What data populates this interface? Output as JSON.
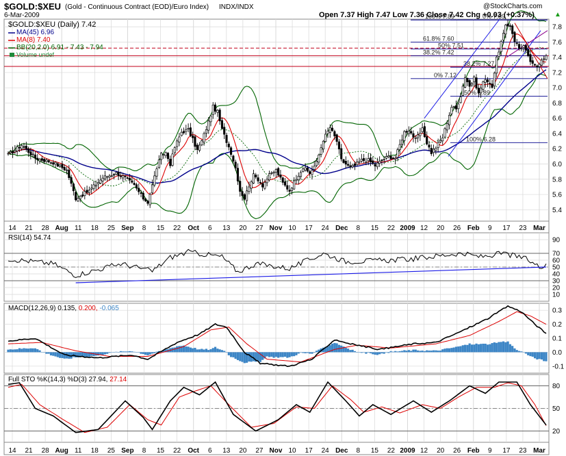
{
  "header": {
    "symbol": "$GOLD:$XEU",
    "description": "(Gold - Continuous Contract (EOD)/Euro Index)",
    "exchange": "INDX/INDX",
    "date": "6-Mar-2009",
    "copyright": "@StockCharts.com",
    "quote": "Open 7.37  High 7.47  Low 7.36  Close 7.42  Chg +0.03 (+0.37%)",
    "quote_arrow": "▲"
  },
  "legend": {
    "main": "$GOLD:$XEU (Daily) 7.42",
    "ma45": "MA(45) 6.96",
    "ma8": "MA(8) 7.40",
    "bb": "BB(20,2.0) 6.91 - 7.43 - 7.94",
    "volume": "Volume undef",
    "rsi": "RSI(14) 54.74",
    "macd_label": "MACD(12,26,9)",
    "macd_v1": "0.135,",
    "macd_v2": "0.200,",
    "macd_v3": "-0.065",
    "sto_label": "Full STO %K(14,3) %D(3)",
    "sto_v1": "27.94,",
    "sto_v2": "27.14"
  },
  "colors": {
    "ma45": "#00008b",
    "ma8": "#dd0000",
    "bb": "#006400",
    "volume": "#1f8a3a",
    "hist": "#3d86c6",
    "fib": "#00008b",
    "grid": "#d8d8d8",
    "border": "#888888",
    "resistance": "#c0001a",
    "trend_blue": "#1a1ae6",
    "trend_purple": "#8b008b",
    "macd_v3": "#3d86c6"
  },
  "x_axis": {
    "labels": [
      {
        "t": "14",
        "b": false
      },
      {
        "t": "21",
        "b": false
      },
      {
        "t": "28",
        "b": false
      },
      {
        "t": "Aug",
        "b": true
      },
      {
        "t": "11",
        "b": false
      },
      {
        "t": "18",
        "b": false
      },
      {
        "t": "25",
        "b": false
      },
      {
        "t": "Sep",
        "b": true
      },
      {
        "t": "8",
        "b": false
      },
      {
        "t": "15",
        "b": false
      },
      {
        "t": "22",
        "b": false
      },
      {
        "t": "Oct",
        "b": true
      },
      {
        "t": "6",
        "b": false
      },
      {
        "t": "13",
        "b": false
      },
      {
        "t": "20",
        "b": false
      },
      {
        "t": "27",
        "b": false
      },
      {
        "t": "Nov",
        "b": true
      },
      {
        "t": "10",
        "b": false
      },
      {
        "t": "17",
        "b": false
      },
      {
        "t": "24",
        "b": false
      },
      {
        "t": "Dec",
        "b": true
      },
      {
        "t": "8",
        "b": false
      },
      {
        "t": "15",
        "b": false
      },
      {
        "t": "22",
        "b": false
      },
      {
        "t": "2009",
        "b": true
      },
      {
        "t": "12",
        "b": false
      },
      {
        "t": "20",
        "b": false
      },
      {
        "t": "26",
        "b": false
      },
      {
        "t": "Feb",
        "b": true
      },
      {
        "t": "9",
        "b": false
      },
      {
        "t": "17",
        "b": false
      },
      {
        "t": "23",
        "b": false
      },
      {
        "t": "Mar",
        "b": true
      }
    ]
  },
  "chart_data": [
    {
      "type": "candlestick",
      "title": "$GOLD:$XEU (Daily) 7.42",
      "ylim": [
        5.25,
        7.9
      ],
      "yticks": [
        "5.4",
        "5.6",
        "5.8",
        "6.0",
        "6.2",
        "6.4",
        "6.6",
        "6.8",
        "7.0",
        "7.2",
        "7.4",
        "7.6",
        "7.8"
      ],
      "close_keypoints": [
        [
          0,
          6.12
        ],
        [
          6,
          6.25
        ],
        [
          12,
          6.08
        ],
        [
          20,
          6.02
        ],
        [
          26,
          5.92
        ],
        [
          30,
          5.55
        ],
        [
          36,
          5.65
        ],
        [
          42,
          5.82
        ],
        [
          48,
          5.88
        ],
        [
          52,
          5.82
        ],
        [
          56,
          5.72
        ],
        [
          60,
          5.55
        ],
        [
          62,
          5.5
        ],
        [
          64,
          5.72
        ],
        [
          66,
          5.95
        ],
        [
          68,
          6.12
        ],
        [
          70,
          6.15
        ],
        [
          72,
          6.0
        ],
        [
          74,
          6.22
        ],
        [
          77,
          6.42
        ],
        [
          80,
          6.45
        ],
        [
          82,
          6.32
        ],
        [
          84,
          6.18
        ],
        [
          86,
          6.3
        ],
        [
          89,
          6.55
        ],
        [
          91,
          6.75
        ],
        [
          93,
          6.68
        ],
        [
          95,
          6.45
        ],
        [
          97,
          6.3
        ],
        [
          99,
          6.15
        ],
        [
          101,
          5.95
        ],
        [
          103,
          5.65
        ],
        [
          105,
          5.55
        ],
        [
          107,
          5.72
        ],
        [
          109,
          5.85
        ],
        [
          111,
          5.8
        ],
        [
          113,
          5.72
        ],
        [
          116,
          5.85
        ],
        [
          119,
          5.92
        ],
        [
          122,
          5.75
        ],
        [
          125,
          5.65
        ],
        [
          128,
          5.82
        ],
        [
          131,
          5.95
        ],
        [
          134,
          5.88
        ],
        [
          137,
          6.02
        ],
        [
          140,
          6.32
        ],
        [
          143,
          6.48
        ],
        [
          146,
          6.3
        ],
        [
          148,
          6.05
        ],
        [
          150,
          6.0
        ],
        [
          152,
          5.95
        ],
        [
          154,
          5.98
        ],
        [
          157,
          6.05
        ],
        [
          160,
          6.05
        ],
        [
          163,
          5.98
        ],
        [
          166,
          6.05
        ],
        [
          169,
          6.1
        ],
        [
          172,
          6.08
        ],
        [
          174,
          6.25
        ],
        [
          176,
          6.42
        ],
        [
          178,
          6.45
        ],
        [
          181,
          6.32
        ],
        [
          184,
          6.45
        ],
        [
          186,
          6.28
        ],
        [
          188,
          6.15
        ],
        [
          190,
          6.22
        ],
        [
          193,
          6.35
        ],
        [
          195,
          6.55
        ],
        [
          197,
          6.75
        ],
        [
          199,
          6.72
        ],
        [
          201,
          6.9
        ],
        [
          203,
          7.15
        ],
        [
          205,
          7.02
        ],
        [
          207,
          7.12
        ],
        [
          209,
          6.92
        ],
        [
          211,
          7.08
        ],
        [
          213,
          7.1
        ],
        [
          215,
          7.02
        ],
        [
          217,
          7.38
        ],
        [
          219,
          7.6
        ],
        [
          221,
          7.8
        ],
        [
          223,
          7.82
        ],
        [
          225,
          7.62
        ],
        [
          227,
          7.52
        ],
        [
          229,
          7.55
        ],
        [
          231,
          7.4
        ],
        [
          233,
          7.3
        ],
        [
          235,
          7.28
        ],
        [
          237,
          7.38
        ],
        [
          239,
          7.42
        ]
      ],
      "moving_averages": [
        {
          "name": "MA(45)",
          "value": 6.96
        },
        {
          "name": "MA(8)",
          "value": 7.4
        }
      ],
      "bollinger": {
        "lower": 6.91,
        "mid": 7.43,
        "upper": 7.94
      },
      "fibonacci": [
        {
          "label": "100% 7.89",
          "value": 7.89
        },
        {
          "label": "0% 7.89",
          "value": 7.89
        },
        {
          "label": "61.8% 7.60",
          "value": 7.6
        },
        {
          "label": "50% 7.51",
          "value": 7.51
        },
        {
          "label": "38.2% 7.42",
          "value": 7.42
        },
        {
          "label": "38.2% 7.27",
          "value": 7.27
        },
        {
          "label": "0% 7.12",
          "value": 7.12
        },
        {
          "label": "50% 6.89",
          "value": 6.89
        },
        {
          "label": "100% 6.28",
          "value": 6.28
        }
      ],
      "resistance_lines": [
        7.42,
        7.52,
        7.28
      ],
      "open": 7.37,
      "high": 7.47,
      "low": 7.36,
      "close": 7.42
    },
    {
      "type": "line",
      "name": "RSI(14)",
      "ylim": [
        0,
        100
      ],
      "yticks": [
        "10",
        "20",
        "30",
        "40",
        "50",
        "60",
        "70",
        "90"
      ],
      "value": 54.74,
      "keypoints": [
        [
          0,
          62
        ],
        [
          20,
          55
        ],
        [
          30,
          38
        ],
        [
          50,
          55
        ],
        [
          64,
          44
        ],
        [
          72,
          64
        ],
        [
          80,
          72
        ],
        [
          95,
          65
        ],
        [
          102,
          43
        ],
        [
          110,
          55
        ],
        [
          125,
          48
        ],
        [
          140,
          70
        ],
        [
          150,
          58
        ],
        [
          170,
          60
        ],
        [
          180,
          62
        ],
        [
          200,
          70
        ],
        [
          210,
          65
        ],
        [
          220,
          70
        ],
        [
          230,
          62
        ],
        [
          236,
          50
        ],
        [
          239,
          55
        ]
      ]
    },
    {
      "type": "line",
      "name": "MACD(12,26,9)",
      "ylim": [
        -0.15,
        0.35
      ],
      "yticks": [
        "-0.1",
        "0.0",
        "0.1",
        "0.2",
        "0.3"
      ],
      "values": {
        "macd": 0.135,
        "signal": 0.2,
        "histogram": -0.065
      },
      "macd_keypoints": [
        [
          0,
          0.08
        ],
        [
          12,
          0.1
        ],
        [
          25,
          -0.02
        ],
        [
          40,
          -0.04
        ],
        [
          55,
          -0.02
        ],
        [
          62,
          -0.05
        ],
        [
          75,
          0.07
        ],
        [
          85,
          0.13
        ],
        [
          92,
          0.2
        ],
        [
          97,
          0.18
        ],
        [
          105,
          0.0
        ],
        [
          112,
          -0.08
        ],
        [
          125,
          -0.1
        ],
        [
          135,
          -0.05
        ],
        [
          145,
          0.09
        ],
        [
          152,
          0.06
        ],
        [
          165,
          0.02
        ],
        [
          180,
          0.06
        ],
        [
          190,
          0.07
        ],
        [
          200,
          0.14
        ],
        [
          213,
          0.24
        ],
        [
          222,
          0.33
        ],
        [
          228,
          0.29
        ],
        [
          234,
          0.2
        ],
        [
          239,
          0.135
        ]
      ],
      "signal_keypoints": [
        [
          0,
          0.06
        ],
        [
          15,
          0.07
        ],
        [
          30,
          0.01
        ],
        [
          45,
          -0.03
        ],
        [
          62,
          -0.03
        ],
        [
          78,
          0.04
        ],
        [
          90,
          0.16
        ],
        [
          98,
          0.18
        ],
        [
          106,
          0.06
        ],
        [
          115,
          -0.05
        ],
        [
          130,
          -0.07
        ],
        [
          145,
          0.02
        ],
        [
          155,
          0.05
        ],
        [
          170,
          0.03
        ],
        [
          190,
          0.06
        ],
        [
          205,
          0.12
        ],
        [
          218,
          0.22
        ],
        [
          226,
          0.29
        ],
        [
          232,
          0.26
        ],
        [
          239,
          0.2
        ]
      ]
    },
    {
      "type": "line",
      "name": "Full STO %K(14,3) %D(3)",
      "ylim": [
        5,
        95
      ],
      "yticks": [
        "20",
        "50",
        "80"
      ],
      "values": {
        "k": 27.94,
        "d": 27.14
      },
      "k_keypoints": [
        [
          0,
          82
        ],
        [
          5,
          84
        ],
        [
          12,
          50
        ],
        [
          20,
          40
        ],
        [
          30,
          18
        ],
        [
          40,
          22
        ],
        [
          52,
          60
        ],
        [
          60,
          38
        ],
        [
          64,
          22
        ],
        [
          72,
          60
        ],
        [
          78,
          78
        ],
        [
          85,
          68
        ],
        [
          92,
          85
        ],
        [
          100,
          42
        ],
        [
          110,
          20
        ],
        [
          120,
          35
        ],
        [
          128,
          55
        ],
        [
          134,
          45
        ],
        [
          142,
          85
        ],
        [
          150,
          60
        ],
        [
          156,
          40
        ],
        [
          162,
          55
        ],
        [
          170,
          42
        ],
        [
          180,
          60
        ],
        [
          188,
          45
        ],
        [
          196,
          60
        ],
        [
          205,
          80
        ],
        [
          212,
          70
        ],
        [
          218,
          85
        ],
        [
          226,
          85
        ],
        [
          232,
          55
        ],
        [
          239,
          28
        ]
      ],
      "d_keypoints": [
        [
          0,
          78
        ],
        [
          6,
          82
        ],
        [
          14,
          55
        ],
        [
          24,
          36
        ],
        [
          34,
          18
        ],
        [
          44,
          25
        ],
        [
          54,
          55
        ],
        [
          62,
          35
        ],
        [
          68,
          28
        ],
        [
          76,
          65
        ],
        [
          82,
          72
        ],
        [
          90,
          80
        ],
        [
          98,
          55
        ],
        [
          108,
          25
        ],
        [
          118,
          30
        ],
        [
          128,
          52
        ],
        [
          136,
          50
        ],
        [
          144,
          80
        ],
        [
          152,
          62
        ],
        [
          158,
          45
        ],
        [
          166,
          52
        ],
        [
          174,
          44
        ],
        [
          184,
          55
        ],
        [
          192,
          50
        ],
        [
          200,
          65
        ],
        [
          208,
          78
        ],
        [
          216,
          78
        ],
        [
          222,
          84
        ],
        [
          228,
          80
        ],
        [
          234,
          55
        ],
        [
          239,
          27
        ]
      ]
    }
  ]
}
